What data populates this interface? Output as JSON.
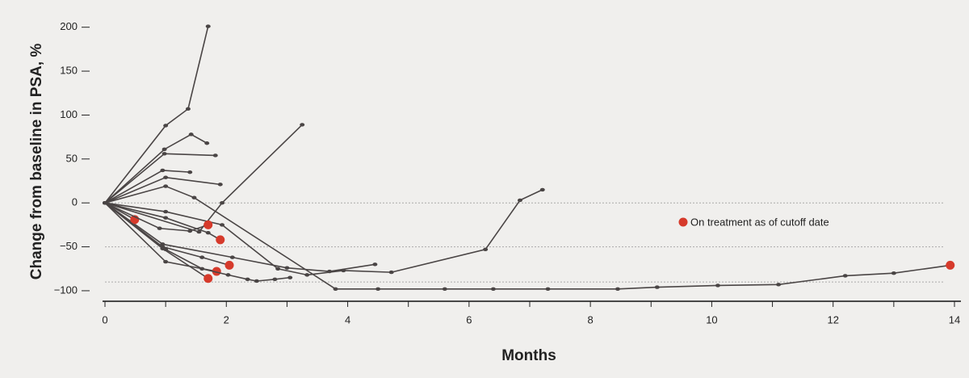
{
  "chart_data": {
    "type": "spider",
    "x_label": "Months",
    "y_label": "Change from baseline in PSA, %",
    "xlim": [
      0,
      14
    ],
    "ylim": [
      -112,
      208
    ],
    "xticks": [
      0,
      2,
      4,
      6,
      8,
      10,
      12,
      14
    ],
    "xminorticks": [
      1,
      3,
      5,
      7,
      9,
      11,
      13
    ],
    "yticks": [
      200,
      150,
      100,
      50,
      0,
      {
        "value": -50,
        "label": "−50"
      },
      {
        "value": -100,
        "label": "−100"
      }
    ],
    "reference_lines": [
      0,
      -50,
      -90
    ],
    "line_color": "#4a4545",
    "marker_color": "#d63a2b",
    "legend": {
      "label": "On treatment as of cutoff date",
      "position": "right"
    },
    "series": [
      {
        "x": [
          0,
          1.0,
          1.37,
          1.7
        ],
        "values": [
          0,
          88,
          107,
          201
        ],
        "on_treatment": false
      },
      {
        "x": [
          0,
          0.98,
          1.42,
          1.68
        ],
        "values": [
          0,
          61,
          78,
          68
        ],
        "on_treatment": false
      },
      {
        "x": [
          0,
          0.98,
          1.82
        ],
        "values": [
          0,
          56,
          54
        ],
        "on_treatment": false
      },
      {
        "x": [
          0,
          0.95,
          1.4
        ],
        "values": [
          0,
          37,
          35
        ],
        "on_treatment": false
      },
      {
        "x": [
          0,
          1.0,
          1.9
        ],
        "values": [
          0,
          29,
          21
        ],
        "on_treatment": false
      },
      {
        "x": [
          0,
          1.0,
          1.47,
          3.8,
          4.5,
          5.6,
          6.4,
          7.3,
          8.45,
          9.1,
          10.1,
          11.1,
          12.2,
          13.0,
          13.93
        ],
        "values": [
          0,
          19,
          6,
          -98,
          -98,
          -98,
          -98,
          -98,
          -98,
          -96,
          -94,
          -93,
          -83,
          -80,
          -71
        ],
        "on_treatment": true
      },
      {
        "x": [
          0,
          1.55,
          1.93,
          3.25
        ],
        "values": [
          0,
          -33,
          0,
          89
        ],
        "on_treatment": false
      },
      {
        "x": [
          0,
          1.0,
          1.93,
          2.85,
          3.33,
          3.93,
          4.72,
          6.27,
          6.84,
          7.21
        ],
        "values": [
          0,
          -10,
          -25,
          -75,
          -82,
          -77,
          -79,
          -53,
          3,
          15
        ],
        "on_treatment": false
      },
      {
        "x": [
          0,
          0.95,
          2.1,
          3.0,
          3.7,
          4.45
        ],
        "values": [
          0,
          -47,
          -62,
          -74,
          -78,
          -70
        ],
        "on_treatment": false
      },
      {
        "x": [
          0,
          0.49
        ],
        "values": [
          0,
          -19
        ],
        "on_treatment": true
      },
      {
        "x": [
          0,
          1.0,
          1.7,
          1.9
        ],
        "values": [
          0,
          -17,
          -34,
          -42
        ],
        "on_treatment": true
      },
      {
        "x": [
          0,
          0.9,
          1.4,
          1.7
        ],
        "values": [
          0,
          -29,
          -32,
          -25
        ],
        "on_treatment": true
      },
      {
        "x": [
          0,
          0.95,
          1.6,
          2.05
        ],
        "values": [
          0,
          -50,
          -62,
          -71
        ],
        "on_treatment": true
      },
      {
        "x": [
          0,
          1.0,
          1.84
        ],
        "values": [
          0,
          -67,
          -78
        ],
        "on_treatment": true
      },
      {
        "x": [
          0,
          0.95,
          1.7
        ],
        "values": [
          0,
          -52,
          -86
        ],
        "on_treatment": true
      },
      {
        "x": [
          0,
          1.0,
          1.6,
          2.03,
          2.35,
          2.5,
          2.8,
          3.05
        ],
        "values": [
          0,
          -53,
          -75,
          -82,
          -87,
          -89,
          -87,
          -85
        ],
        "on_treatment": false
      }
    ]
  }
}
